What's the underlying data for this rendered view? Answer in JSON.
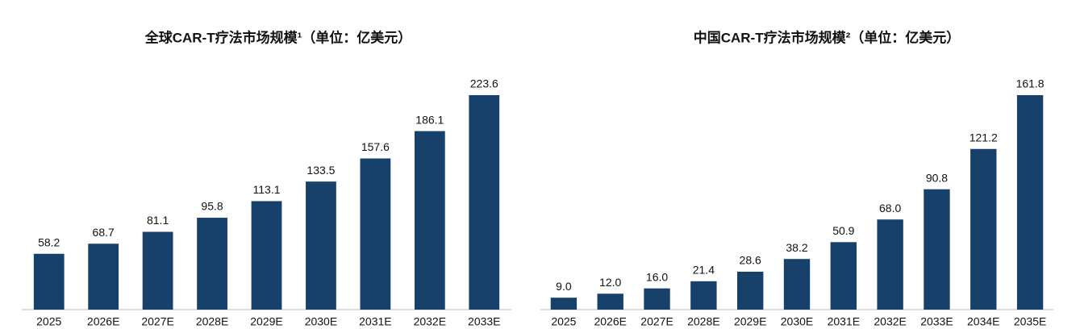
{
  "chart_data": [
    {
      "type": "bar",
      "title": "全球CAR-T疗法市场规模¹（单位：亿美元）",
      "categories": [
        "2025",
        "2026E",
        "2027E",
        "2028E",
        "2029E",
        "2030E",
        "2031E",
        "2032E",
        "2033E"
      ],
      "values": [
        58.2,
        68.7,
        81.1,
        95.8,
        113.1,
        133.5,
        157.6,
        186.1,
        223.6
      ],
      "value_labels": [
        "58.2",
        "68.7",
        "81.1",
        "95.8",
        "113.1",
        "133.5",
        "157.6",
        "186.1",
        "223.6"
      ],
      "color": "#17406a"
    },
    {
      "type": "bar",
      "title": "中国CAR-T疗法市场规模²（单位：亿美元）",
      "categories": [
        "2025",
        "2026E",
        "2027E",
        "2028E",
        "2029E",
        "2030E",
        "2031E",
        "2032E",
        "2033E",
        "2034E",
        "2035E"
      ],
      "values": [
        9.0,
        12.0,
        16.0,
        21.4,
        28.6,
        38.2,
        50.9,
        68.0,
        90.8,
        121.2,
        161.8
      ],
      "value_labels": [
        "9.0",
        "12.0",
        "16.0",
        "21.4",
        "28.6",
        "38.2",
        "50.9",
        "68.0",
        "90.8",
        "121.2",
        "161.8"
      ],
      "color": "#17406a"
    }
  ]
}
